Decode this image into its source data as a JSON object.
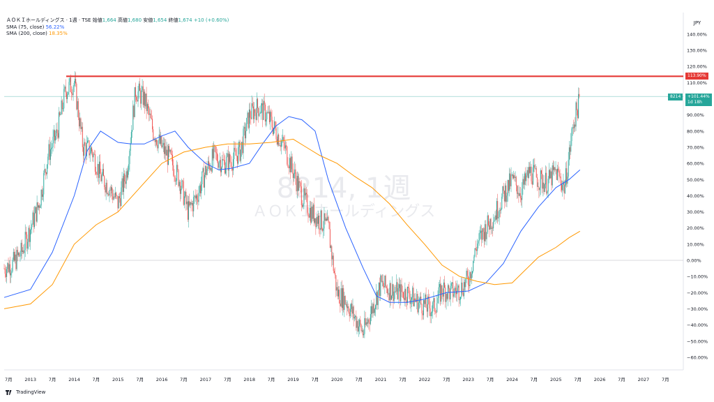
{
  "header": {
    "title": "ＡＯＫＩホールディングス · 1週 · TSE",
    "open_label": "始値",
    "open_value": "1,664",
    "high_label": "高値",
    "high_value": "1,680",
    "low_label": "安値",
    "low_value": "1,654",
    "close_label": "終値",
    "close_value": "1,674",
    "change": "+10 (+0.60%)"
  },
  "indicators": [
    {
      "label": "SMA (75, close)",
      "value": "56.22%",
      "color": "#2962ff"
    },
    {
      "label": "SMA (200, close)",
      "value": "18.35%",
      "color": "#ff9800"
    }
  ],
  "watermark": {
    "line1": "8214, 1週",
    "line2": "ＡＯＫＩホールディングス"
  },
  "price_axis": {
    "currency": "JPY",
    "ticks": [
      "140.00%",
      "130.00%",
      "120.00%",
      "110.00%",
      "100.00%",
      "90.00%",
      "80.00%",
      "70.00%",
      "60.00%",
      "50.00%",
      "40.00%",
      "30.00%",
      "20.00%",
      "10.00%",
      "0.00%",
      "−10.00%",
      "−20.00%",
      "−30.00%",
      "−40.00%",
      "−50.00%",
      "−60.00%"
    ]
  },
  "time_axis": {
    "labels": [
      "7月",
      "2013",
      "7月",
      "2014",
      "7月",
      "2015",
      "7月",
      "2016",
      "7月",
      "2017",
      "7月",
      "2018",
      "7月",
      "2019",
      "7月",
      "2020",
      "7月",
      "2021",
      "7月",
      "2022",
      "7月",
      "2023",
      "7月",
      "2024",
      "7月",
      "2025",
      "7月",
      "2026",
      "7月",
      "2027",
      "7月"
    ]
  },
  "resistance_tag": "113.90%",
  "last_price_tag": {
    "symbol": "8214",
    "value": "+101.44%",
    "countdown": "1d 18h"
  },
  "brand": "TradingView",
  "colors": {
    "up": "#26a69a",
    "down": "#ef5350",
    "sma75": "#2962ff",
    "sma200": "#ff9800",
    "resistance": "#e53935",
    "last": "#26a69a"
  },
  "chart_data": {
    "type": "line",
    "y_unit": "% change",
    "ylim": [
      -65,
      145
    ],
    "x_range": [
      "2012-05",
      "2027-08"
    ],
    "series": [
      {
        "name": "SMA (75, close)",
        "x": [
          2012.4,
          2013.0,
          2013.5,
          2014.0,
          2014.3,
          2014.6,
          2015.0,
          2015.3,
          2015.6,
          2016.0,
          2016.3,
          2016.6,
          2017.0,
          2017.3,
          2017.6,
          2018.0,
          2018.3,
          2018.6,
          2018.9,
          2019.2,
          2019.5,
          2019.8,
          2020.2,
          2020.6,
          2020.9,
          2021.2,
          2021.6,
          2022.0,
          2022.5,
          2023.0,
          2023.4,
          2023.8,
          2024.2,
          2024.6,
          2025.0,
          2025.3,
          2025.55
        ],
        "y": [
          -23,
          -18,
          5,
          40,
          68,
          80,
          73,
          72,
          72,
          77,
          80,
          70,
          60,
          56,
          57,
          60,
          72,
          83,
          89,
          87,
          80,
          50,
          20,
          -5,
          -22,
          -26,
          -26,
          -24,
          -20,
          -19,
          -14,
          -2,
          18,
          33,
          45,
          50,
          56
        ]
      },
      {
        "name": "SMA (200, close)",
        "x": [
          2012.4,
          2013.0,
          2013.5,
          2014.0,
          2014.5,
          2015.0,
          2015.5,
          2016.0,
          2016.5,
          2017.0,
          2017.5,
          2018.0,
          2018.5,
          2019.0,
          2019.3,
          2019.6,
          2020.0,
          2020.4,
          2020.8,
          2021.2,
          2021.6,
          2022.0,
          2022.4,
          2022.8,
          2023.2,
          2023.6,
          2024.0,
          2024.3,
          2024.6,
          2025.0,
          2025.3,
          2025.55
        ],
        "y": [
          -30,
          -27,
          -15,
          10,
          22,
          30,
          45,
          60,
          67,
          70,
          72,
          72,
          73,
          75,
          70,
          65,
          60,
          52,
          45,
          35,
          22,
          10,
          -3,
          -10,
          -13,
          -15,
          -14,
          -6,
          2,
          8,
          14,
          18
        ]
      },
      {
        "name": "8214",
        "x": [
          2012.4,
          2012.6,
          2012.8,
          2013.0,
          2013.2,
          2013.4,
          2013.6,
          2013.8,
          2014.0,
          2014.2,
          2014.4,
          2014.6,
          2014.8,
          2015.0,
          2015.2,
          2015.4,
          2015.6,
          2015.8,
          2016.0,
          2016.2,
          2016.4,
          2016.6,
          2016.8,
          2017.0,
          2017.2,
          2017.4,
          2017.6,
          2017.8,
          2018.0,
          2018.2,
          2018.4,
          2018.6,
          2018.8,
          2019.0,
          2019.2,
          2019.4,
          2019.6,
          2019.8,
          2020.0,
          2020.2,
          2020.4,
          2020.6,
          2020.8,
          2021.0,
          2021.2,
          2021.4,
          2021.6,
          2021.8,
          2022.0,
          2022.2,
          2022.4,
          2022.6,
          2022.8,
          2023.0,
          2023.2,
          2023.4,
          2023.6,
          2023.8,
          2024.0,
          2024.2,
          2024.4,
          2024.6,
          2024.8,
          2025.0,
          2025.2,
          2025.4,
          2025.55
        ],
        "y": [
          -5,
          -2,
          5,
          20,
          35,
          65,
          78,
          105,
          110,
          70,
          68,
          52,
          45,
          35,
          55,
          105,
          100,
          80,
          70,
          62,
          50,
          30,
          40,
          55,
          65,
          60,
          62,
          68,
          90,
          95,
          90,
          80,
          70,
          55,
          40,
          30,
          25,
          20,
          -20,
          -25,
          -35,
          -45,
          -30,
          -15,
          -18,
          -20,
          -20,
          -25,
          -28,
          -30,
          -18,
          -20,
          -18,
          -12,
          10,
          20,
          28,
          40,
          50,
          42,
          55,
          50,
          48,
          55,
          45,
          85,
          100
        ]
      }
    ],
    "resistance_level": 113.9,
    "last_value": 101.44,
    "grid": false,
    "legend": "top-left"
  }
}
